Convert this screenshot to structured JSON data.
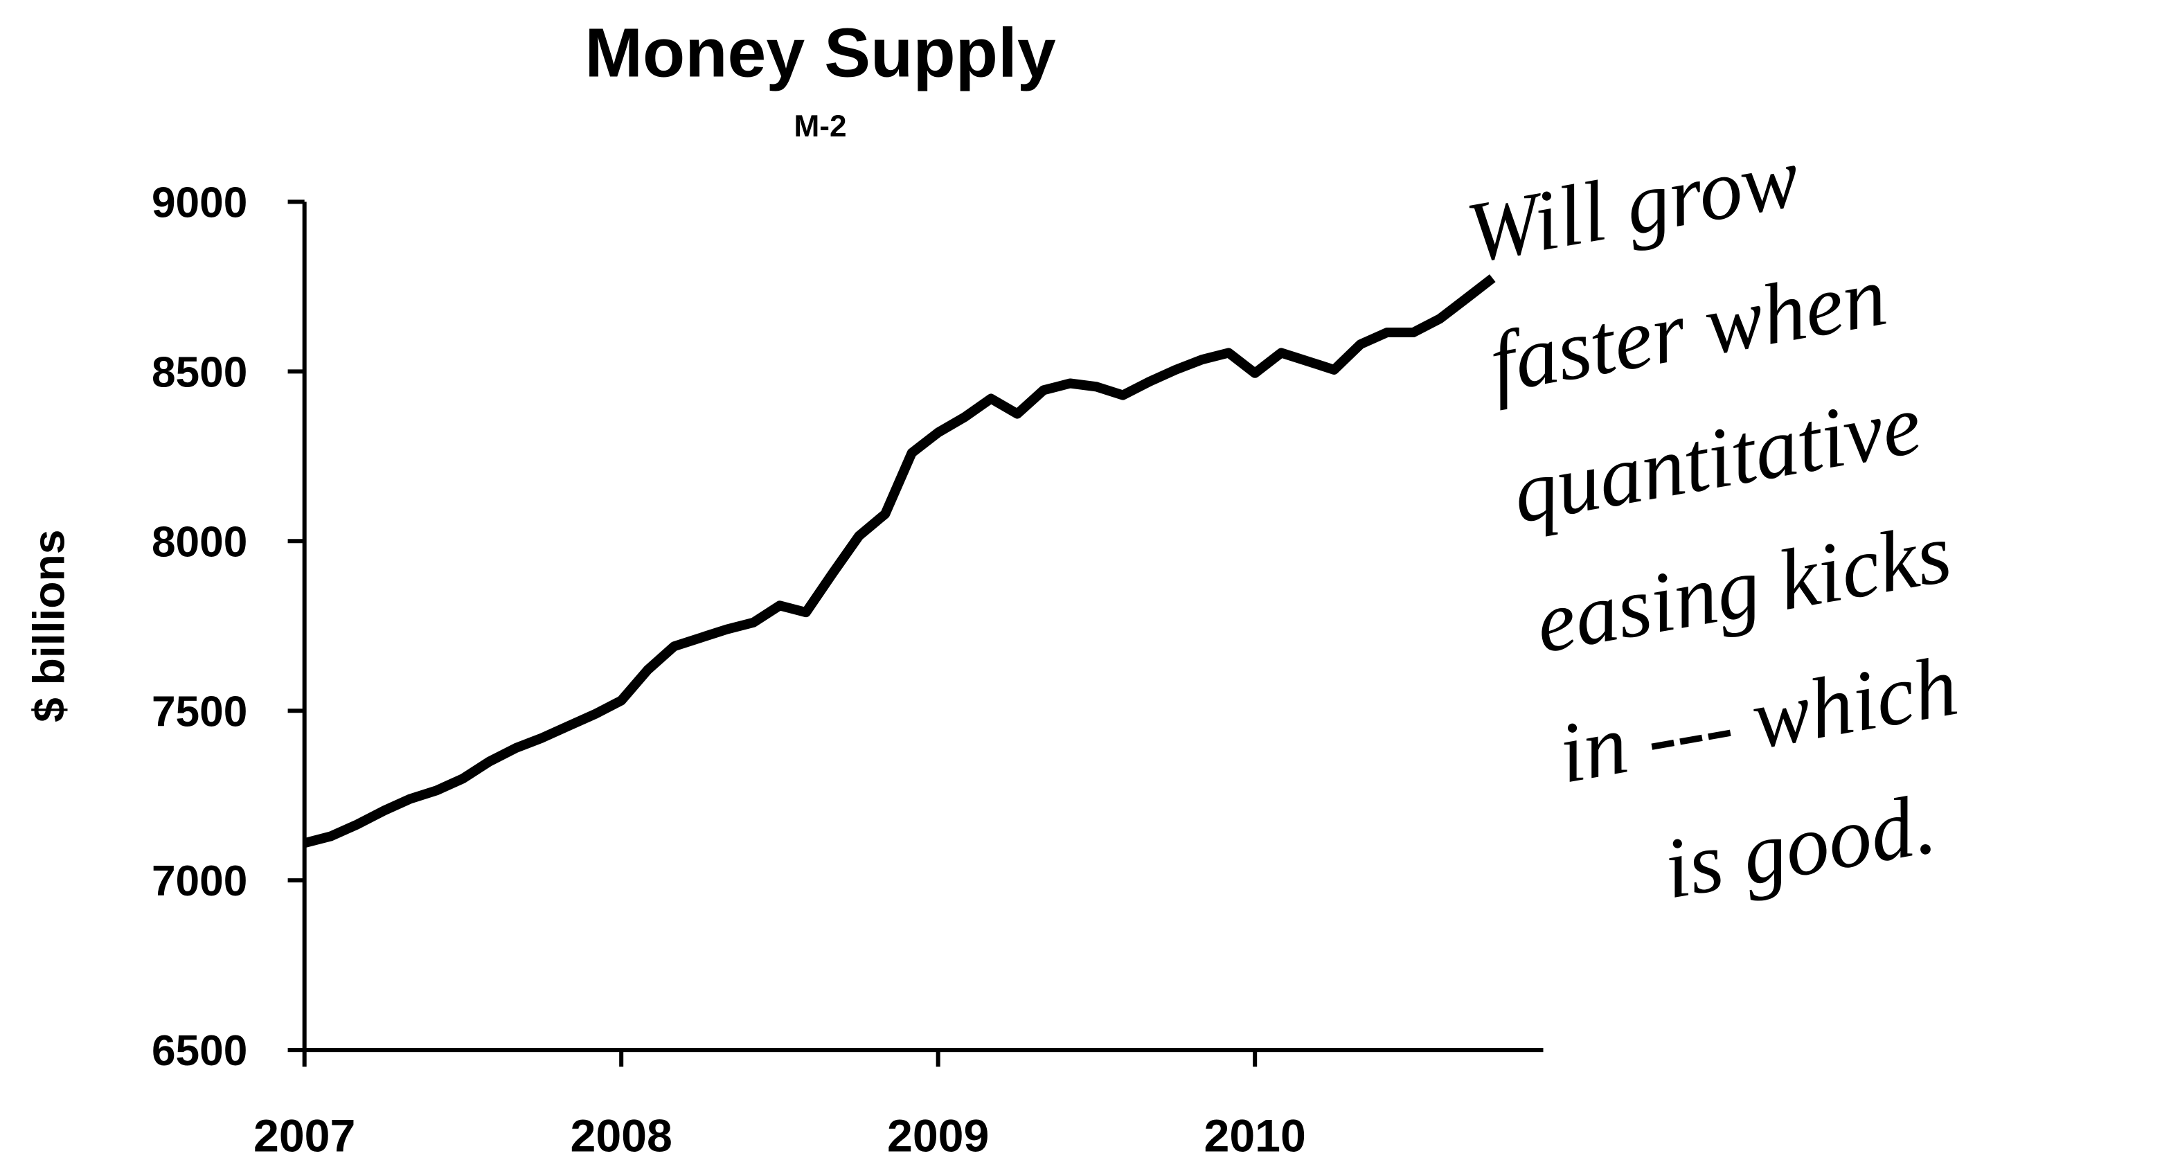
{
  "chart_data": {
    "type": "line",
    "title": "Money Supply",
    "subtitle": "M-2",
    "ylabel": "$ billions",
    "annotation": [
      "Will grow",
      "faster when",
      "quantitative",
      "easing kicks",
      "in --- which",
      "is good."
    ],
    "x": [
      2007,
      2007.083,
      2007.167,
      2007.25,
      2007.333,
      2007.417,
      2007.5,
      2007.583,
      2007.667,
      2007.75,
      2007.833,
      2007.917,
      2008,
      2008.083,
      2008.167,
      2008.25,
      2008.333,
      2008.417,
      2008.5,
      2008.583,
      2008.667,
      2008.75,
      2008.833,
      2008.917,
      2009,
      2009.083,
      2009.167,
      2009.25,
      2009.333,
      2009.417,
      2009.5,
      2009.583,
      2009.667,
      2009.75,
      2009.833,
      2009.917,
      2010,
      2010.083,
      2010.167,
      2010.25,
      2010.333,
      2010.417,
      2010.5,
      2010.583,
      2010.667,
      2010.75
    ],
    "series": [
      {
        "name": "M-2",
        "color": "#000000",
        "values": [
          7110,
          7130,
          7165,
          7205,
          7240,
          7265,
          7300,
          7350,
          7390,
          7420,
          7455,
          7490,
          7530,
          7620,
          7690,
          7715,
          7740,
          7760,
          7810,
          7790,
          7905,
          8015,
          8080,
          8260,
          8320,
          8365,
          8420,
          8375,
          8445,
          8465,
          8455,
          8430,
          8470,
          8505,
          8535,
          8555,
          8495,
          8555,
          8530,
          8505,
          8580,
          8615,
          8615,
          8655,
          8715,
          8775
        ]
      }
    ],
    "xlim": [
      2007,
      2010.91
    ],
    "xticks": [
      2007,
      2008,
      2009,
      2010
    ],
    "ylim": [
      6500,
      9000
    ],
    "yticks": [
      6500,
      7000,
      7500,
      8000,
      8500,
      9000
    ],
    "grid": false
  }
}
